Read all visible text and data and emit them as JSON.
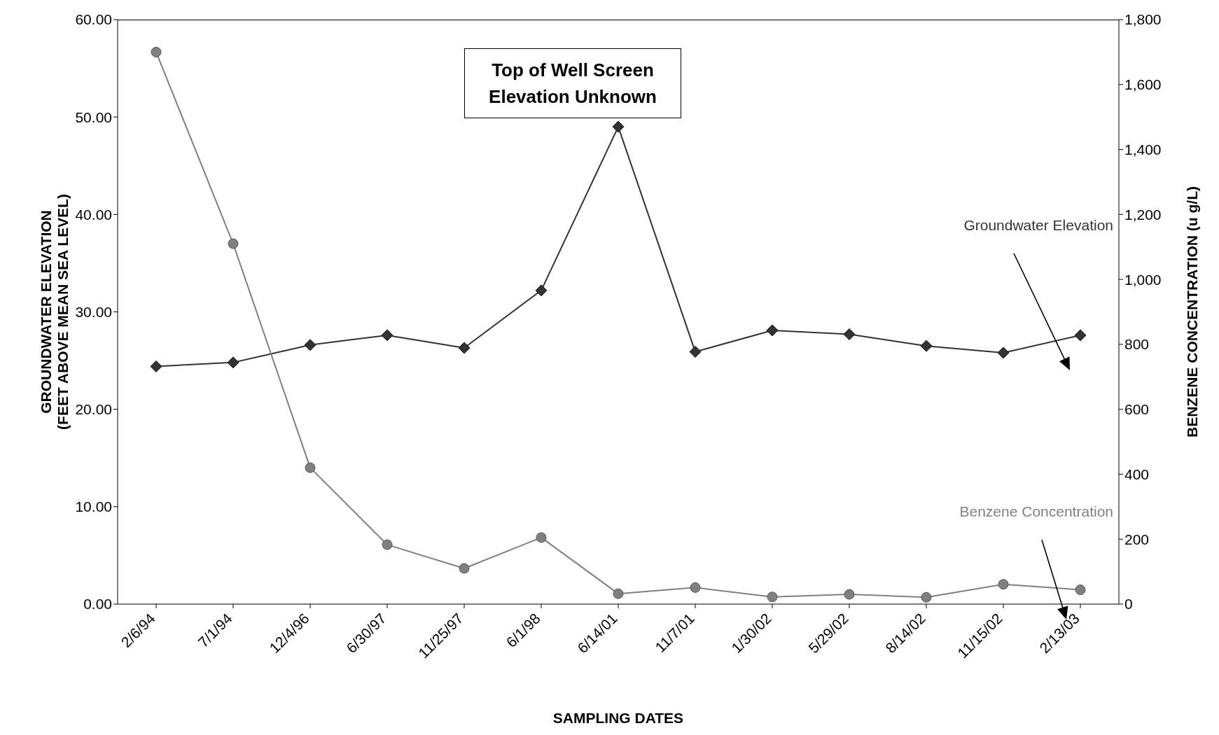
{
  "chart_data": {
    "type": "line",
    "xlabel": "SAMPLING DATES",
    "ylabel": "GROUNDWATER ELEVATION\n(FEET ABOVE MEAN SEA LEVEL)",
    "y2label": "BENZENE CONCENTRATION (u g/L)",
    "categories": [
      "2/6/94",
      "7/1/94",
      "12/4/96",
      "6/30/97",
      "11/25/97",
      "6/1/98",
      "6/14/01",
      "11/7/01",
      "1/30/02",
      "5/29/02",
      "8/14/02",
      "11/15/02",
      "2/13/03"
    ],
    "series": [
      {
        "name": "Groundwater Elevation",
        "color": "#333333",
        "marker": "diamond",
        "values": [
          24.4,
          24.8,
          26.6,
          27.6,
          26.3,
          32.2,
          49.0,
          25.9,
          28.1,
          27.7,
          26.5,
          25.8,
          27.6
        ]
      },
      {
        "name": "Benzene Concentration",
        "color": "#808080",
        "marker": "circle",
        "axis": "y2",
        "values": [
          1700,
          1110,
          420,
          183,
          110,
          205,
          32,
          51,
          22,
          30,
          21,
          61,
          44
        ]
      }
    ],
    "annotations": [
      {
        "text": "Top of Well Screen Elevation Unknown",
        "x": "6/14/01",
        "y": 49.0
      }
    ],
    "ylim": [
      0,
      60
    ],
    "yticks": [
      {
        "value": 0,
        "label": "0.00"
      },
      {
        "value": 10,
        "label": "10.00"
      },
      {
        "value": 20,
        "label": "20.00"
      },
      {
        "value": 30,
        "label": "30.00"
      },
      {
        "value": 40,
        "label": "40.00"
      },
      {
        "value": 50,
        "label": "50.00"
      },
      {
        "value": 60,
        "label": "60.00"
      }
    ],
    "y2lim": [
      0,
      1800
    ],
    "y2ticks": [
      0,
      200,
      400,
      600,
      800,
      {
        "value": 1000,
        "label": "1,000"
      },
      {
        "value": 1200,
        "label": "1,200"
      },
      {
        "value": 1400,
        "label": "1,400"
      },
      {
        "value": 1600,
        "label": "1,600"
      },
      {
        "value": 1800,
        "label": "1,800"
      }
    ]
  }
}
